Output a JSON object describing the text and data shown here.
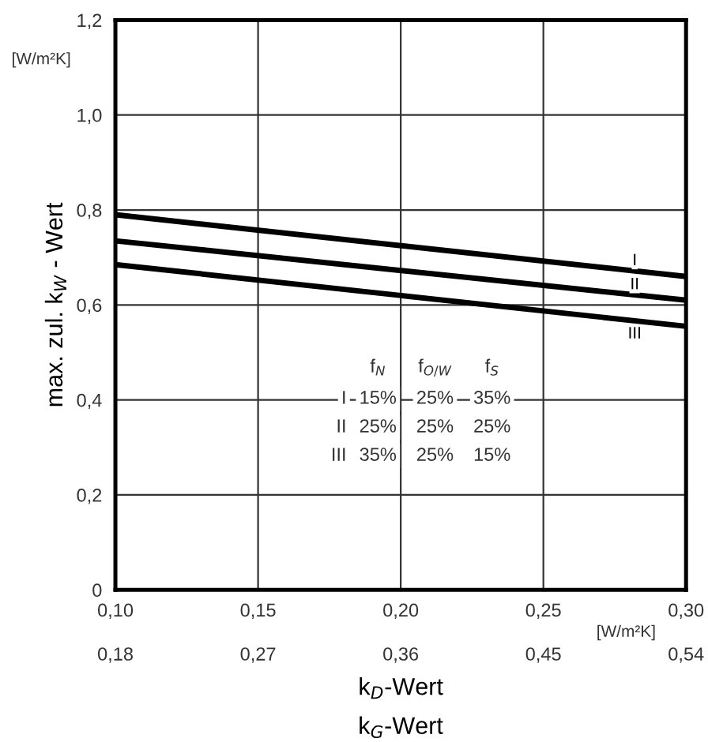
{
  "chart_data": {
    "type": "line",
    "x": [
      0.1,
      0.3
    ],
    "series": [
      {
        "name": "I",
        "color": "#000000",
        "values": [
          0.79,
          0.66
        ]
      },
      {
        "name": "II",
        "color": "#000000",
        "values": [
          0.735,
          0.61
        ]
      },
      {
        "name": "III",
        "color": "#000000",
        "values": [
          0.685,
          0.555
        ]
      }
    ],
    "xlim": [
      0.1,
      0.3
    ],
    "xticks": [
      {
        "value": 0.1,
        "label": "0,10"
      },
      {
        "value": 0.15,
        "label": "0,15"
      },
      {
        "value": 0.2,
        "label": "0,20"
      },
      {
        "value": 0.25,
        "label": "0,25"
      },
      {
        "value": 0.3,
        "label": "0,30"
      }
    ],
    "x2lim": [
      0.18,
      0.54
    ],
    "x2ticks": [
      {
        "value": 0.18,
        "label": "0,18"
      },
      {
        "value": 0.27,
        "label": "0,27"
      },
      {
        "value": 0.36,
        "label": "0,36"
      },
      {
        "value": 0.45,
        "label": "0,45"
      },
      {
        "value": 0.54,
        "label": "0,54"
      }
    ],
    "ylim": [
      0,
      1.2
    ],
    "yticks": [
      0,
      {
        "value": 0.2,
        "label": "0,2"
      },
      {
        "value": 0.4,
        "label": "0,4"
      },
      {
        "value": 0.6,
        "label": "0,6"
      },
      {
        "value": 0.8,
        "label": "0,8"
      },
      {
        "value": 1.0,
        "label": "1,0"
      },
      {
        "value": 1.2,
        "label": "1,2"
      }
    ],
    "xlabel": "k$_{D}$-Wert",
    "x2label": "k$_{G}$-Wert",
    "ylabel": "max. zul. k$_{W}$ - Wert",
    "grid": true,
    "marker": "none",
    "line_style": "solid",
    "annotations": [
      "[W/m²K]",
      "[W/m²K]",
      "f$_{N}$",
      "f$_{O/W}$",
      "f$_{S}$",
      "I",
      "15%",
      "25%",
      "35%",
      "II",
      "25%",
      "25%",
      "25%",
      "III",
      "35%",
      "25%",
      "15%"
    ]
  }
}
